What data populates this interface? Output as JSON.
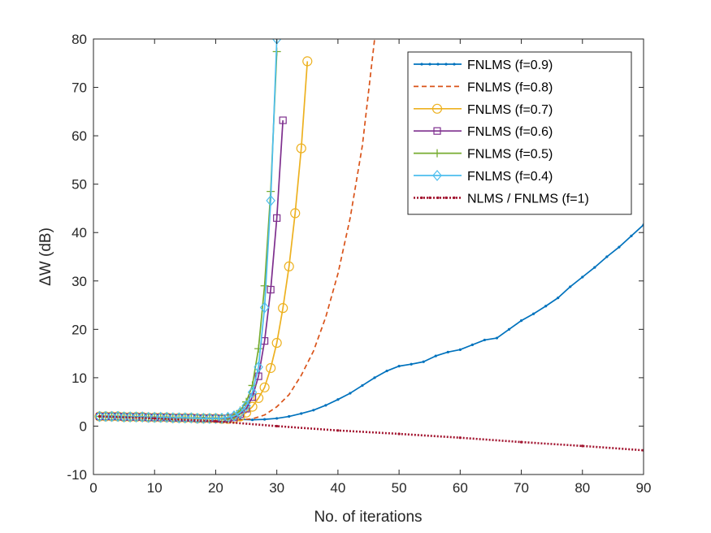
{
  "chart_data": {
    "type": "line",
    "title": "",
    "xlabel": "No. of iterations",
    "ylabel": "ΔW (dB)",
    "xlim": [
      0,
      90
    ],
    "ylim": [
      -10,
      80
    ],
    "xticks": [
      "0",
      "10",
      "20",
      "30",
      "40",
      "50",
      "60",
      "70",
      "80",
      "90"
    ],
    "yticks": [
      "-10",
      "0",
      "10",
      "20",
      "30",
      "40",
      "50",
      "60",
      "70",
      "80"
    ],
    "grid": false,
    "legend_position": "top-right",
    "series": [
      {
        "name": "FNLMS (f=0.9)",
        "color": "#0072BD",
        "line_style": "solid",
        "marker": "dot",
        "x": [
          1,
          3,
          5,
          8,
          10,
          12,
          15,
          18,
          20,
          22,
          24,
          26,
          28,
          30,
          32,
          34,
          36,
          38,
          40,
          42,
          44,
          46,
          48,
          50,
          52,
          54,
          56,
          58,
          60,
          62,
          64,
          66,
          68,
          70,
          72,
          74,
          76,
          78,
          80,
          82,
          84,
          86,
          88,
          90
        ],
        "y": [
          2.0,
          2.0,
          1.9,
          1.9,
          1.8,
          1.8,
          1.7,
          1.7,
          1.6,
          1.5,
          1.4,
          1.3,
          1.4,
          1.6,
          2.0,
          2.6,
          3.3,
          4.3,
          5.5,
          6.8,
          8.4,
          10.0,
          11.4,
          12.4,
          12.8,
          13.3,
          14.5,
          15.3,
          15.8,
          16.8,
          17.8,
          18.2,
          20.0,
          21.8,
          23.2,
          24.8,
          26.5,
          28.8,
          30.8,
          32.8,
          35.0,
          37.0,
          39.3,
          41.6
        ]
      },
      {
        "name": "FNLMS (f=0.8)",
        "color": "#D95319",
        "line_style": "dashed",
        "marker": "none",
        "x": [
          1,
          10,
          20,
          24,
          26,
          28,
          30,
          32,
          34,
          36,
          38,
          40,
          42,
          44,
          46
        ],
        "y": [
          2.0,
          1.8,
          1.6,
          1.3,
          1.5,
          2.3,
          4.0,
          6.5,
          10.5,
          15.5,
          22.5,
          31.5,
          43.0,
          58.0,
          80.0
        ]
      },
      {
        "name": "FNLMS (f=0.7)",
        "color": "#EDB120",
        "line_style": "solid",
        "marker": "circle",
        "x": [
          1,
          2,
          3,
          4,
          5,
          6,
          7,
          8,
          9,
          10,
          11,
          12,
          13,
          14,
          15,
          16,
          17,
          18,
          19,
          20,
          21,
          22,
          23,
          24,
          25,
          26,
          27,
          28,
          29,
          30,
          31,
          32,
          33,
          34,
          35
        ],
        "y": [
          2.0,
          2.0,
          2.0,
          2.0,
          1.9,
          1.9,
          1.9,
          1.9,
          1.8,
          1.8,
          1.8,
          1.8,
          1.7,
          1.7,
          1.7,
          1.7,
          1.6,
          1.6,
          1.6,
          1.6,
          1.5,
          1.5,
          1.6,
          2.0,
          2.8,
          4.0,
          5.8,
          8.0,
          12.0,
          17.2,
          24.4,
          33.0,
          44.0,
          57.4,
          75.4
        ]
      },
      {
        "name": "FNLMS (f=0.6)",
        "color": "#7E2F8E",
        "line_style": "solid",
        "marker": "square",
        "x": [
          1,
          2,
          3,
          4,
          5,
          6,
          7,
          8,
          9,
          10,
          11,
          12,
          13,
          14,
          15,
          16,
          17,
          18,
          19,
          20,
          21,
          22,
          23,
          24,
          25,
          26,
          27,
          28,
          29,
          30,
          31
        ],
        "y": [
          2.0,
          2.0,
          2.0,
          2.0,
          1.9,
          1.9,
          1.9,
          1.9,
          1.8,
          1.8,
          1.8,
          1.8,
          1.7,
          1.7,
          1.7,
          1.7,
          1.6,
          1.6,
          1.6,
          1.6,
          1.5,
          1.6,
          1.8,
          2.5,
          3.6,
          6.0,
          10.3,
          17.6,
          28.2,
          43.0,
          63.2
        ]
      },
      {
        "name": "FNLMS (f=0.5)",
        "color": "#77AC30",
        "line_style": "solid",
        "marker": "plus",
        "x": [
          1,
          2,
          3,
          4,
          5,
          6,
          7,
          8,
          9,
          10,
          11,
          12,
          13,
          14,
          15,
          16,
          17,
          18,
          19,
          20,
          21,
          22,
          23,
          24,
          25,
          26,
          27,
          28,
          29,
          30
        ],
        "y": [
          2.0,
          2.0,
          2.0,
          2.0,
          1.9,
          1.9,
          1.9,
          1.9,
          1.8,
          1.8,
          1.8,
          1.8,
          1.7,
          1.7,
          1.7,
          1.7,
          1.6,
          1.6,
          1.6,
          1.6,
          1.6,
          1.8,
          2.2,
          3.2,
          5.0,
          8.4,
          16.0,
          29.0,
          48.5,
          77.4
        ]
      },
      {
        "name": "FNLMS (f=0.4)",
        "color": "#4DBEEE",
        "line_style": "solid",
        "marker": "diamond",
        "x": [
          1,
          2,
          3,
          4,
          5,
          6,
          7,
          8,
          9,
          10,
          11,
          12,
          13,
          14,
          15,
          16,
          17,
          18,
          19,
          20,
          21,
          22,
          23,
          24,
          25,
          26,
          27,
          28,
          29,
          30
        ],
        "y": [
          2.0,
          2.0,
          2.0,
          2.0,
          1.9,
          1.9,
          1.9,
          1.9,
          1.8,
          1.8,
          1.8,
          1.8,
          1.7,
          1.7,
          1.7,
          1.7,
          1.6,
          1.6,
          1.6,
          1.6,
          1.6,
          1.8,
          2.1,
          2.8,
          4.2,
          7.0,
          12.2,
          24.5,
          46.6,
          80.0
        ]
      },
      {
        "name": "NLMS / FNLMS (f=1)",
        "color": "#A2142F",
        "line_style": "dotted",
        "marker": "dot",
        "x": [
          1,
          10,
          20,
          30,
          40,
          50,
          60,
          70,
          80,
          90
        ],
        "y": [
          2.0,
          1.6,
          1.0,
          0.0,
          -0.9,
          -1.6,
          -2.4,
          -3.3,
          -4.1,
          -5.0
        ]
      }
    ]
  }
}
